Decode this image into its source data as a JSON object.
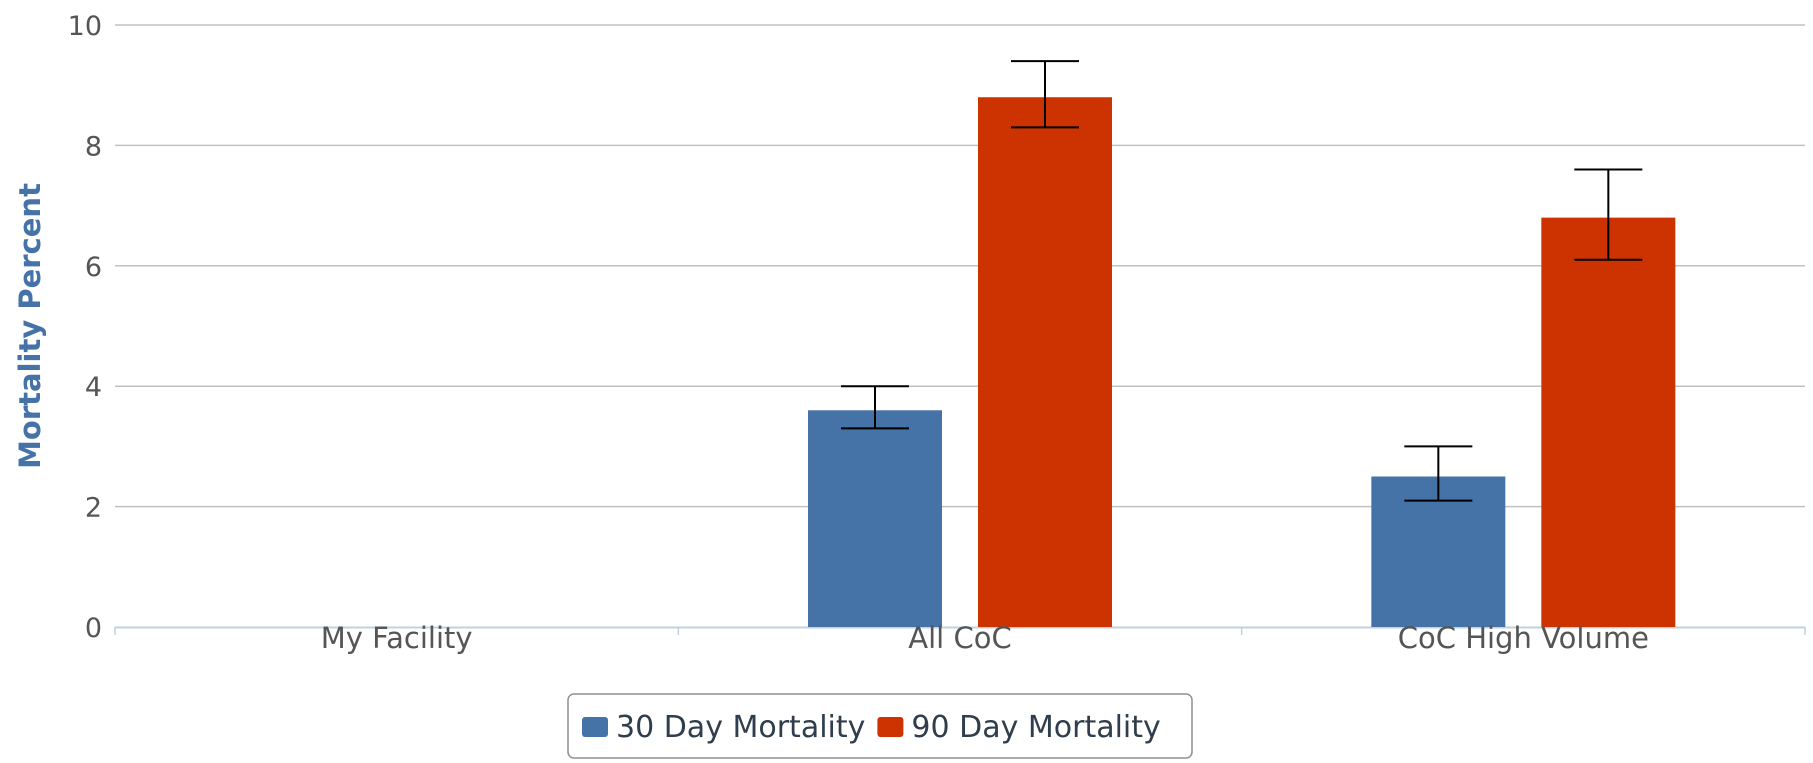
{
  "chart_data": {
    "type": "bar",
    "title": "",
    "xlabel": "",
    "ylabel": "Mortality Percent",
    "ylim": [
      0,
      10
    ],
    "yticks": [
      "0",
      "2",
      "4",
      "6",
      "8",
      "10"
    ],
    "categories": [
      "My Facility",
      "All CoC",
      "CoC High Volume"
    ],
    "series": [
      {
        "name": "30 Day Mortality",
        "color": "#4572a7",
        "values": [
          null,
          3.6,
          2.5
        ],
        "error_low": [
          null,
          3.3,
          2.1
        ],
        "error_high": [
          null,
          4.0,
          3.0
        ]
      },
      {
        "name": "90 Day Mortality",
        "color": "#cc3300",
        "values": [
          null,
          8.8,
          6.8
        ],
        "error_low": [
          null,
          8.3,
          6.1
        ],
        "error_high": [
          null,
          9.4,
          7.6
        ]
      }
    ],
    "grid": true,
    "legend": "bottom-center"
  }
}
